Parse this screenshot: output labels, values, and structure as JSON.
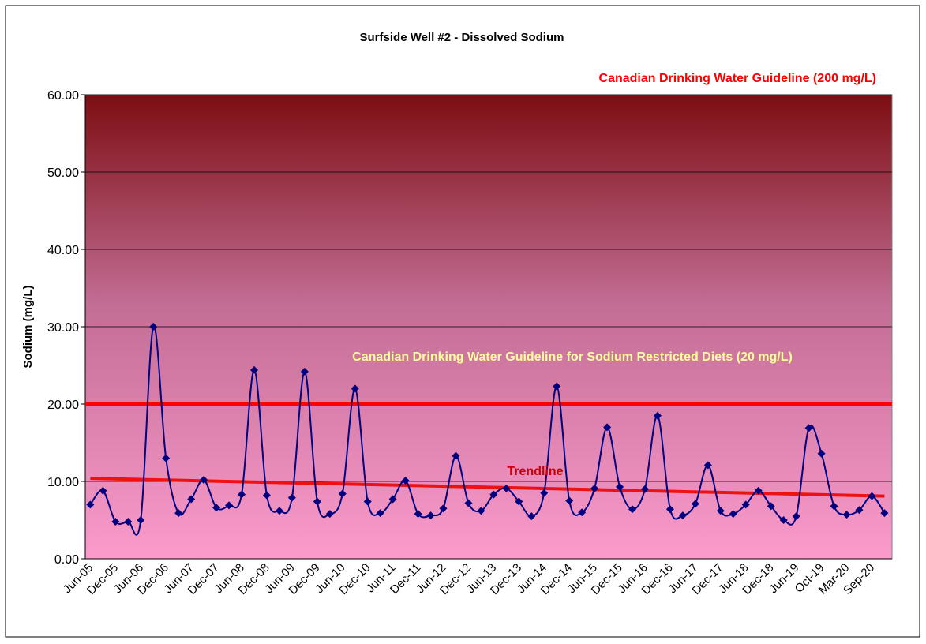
{
  "chart_data": {
    "type": "line",
    "title": "Surfside Well #2 - Dissolved Sodium",
    "y_label": "Sodium (mg/L)",
    "annotations": {
      "upper_guideline": "Canadian Drinking Water Guideline (200 mg/L)",
      "restricted_guideline": "Canadian Drinking Water Guideline for Sodium Restricted Diets (20 mg/L)",
      "trend": "Trendline"
    },
    "guideline": 20,
    "guideline_color": "#ff0000",
    "trendline": [
      10.4,
      8.1
    ],
    "trend_color": "#ee1111",
    "categories": [
      "Jun-05",
      null,
      "Dec-05",
      null,
      "Jun-06",
      null,
      "Dec-06",
      null,
      "Jun-07",
      null,
      "Dec-07",
      null,
      "Jun-08",
      null,
      "Dec-08",
      null,
      "Jun-09",
      null,
      "Dec-09",
      null,
      "Jun-10",
      null,
      "Dec-10",
      null,
      "Jun-11",
      null,
      "Dec-11",
      null,
      "Jun-12",
      null,
      "Dec-12",
      null,
      "Jun-13",
      null,
      "Dec-13",
      null,
      "Jun-14",
      null,
      "Dec-14",
      null,
      "Jun-15",
      null,
      "Dec-15",
      null,
      "Jun-16",
      null,
      "Dec-16",
      null,
      "Jun-17",
      null,
      "Dec-17",
      null,
      "Jun-18",
      null,
      "Dec-18",
      null,
      "Jun-19",
      null,
      "Oct-19",
      null,
      "Mar-20",
      null,
      "Sep-20",
      null
    ],
    "series": [
      {
        "name": "Sodium",
        "color": "#000080",
        "values": [
          7.0,
          8.8,
          4.8,
          4.8,
          5.0,
          30.0,
          13.0,
          5.9,
          7.7,
          10.2,
          6.6,
          6.9,
          8.3,
          24.4,
          8.2,
          6.2,
          7.9,
          24.2,
          7.4,
          5.8,
          8.4,
          22.0,
          7.4,
          5.9,
          7.7,
          10.1,
          5.8,
          5.6,
          6.5,
          13.3,
          7.2,
          6.2,
          8.3,
          9.1,
          7.4,
          5.5,
          8.5,
          22.3,
          7.5,
          6.0,
          9.1,
          17.0,
          9.3,
          6.4,
          9.0,
          18.5,
          6.4,
          5.6,
          7.1,
          12.1,
          6.2,
          5.8,
          7.0,
          8.8,
          6.8,
          5.0,
          5.5,
          16.9,
          13.6,
          6.8,
          5.7,
          6.3,
          8.1,
          5.9
        ]
      }
    ],
    "ylim": [
      0,
      60
    ],
    "yticks": [
      {
        "value": 0,
        "label": "0.00"
      },
      {
        "value": 10,
        "label": "10.00"
      },
      {
        "value": 20,
        "label": "20.00"
      },
      {
        "value": 30,
        "label": "30.00"
      },
      {
        "value": 40,
        "label": "40.00"
      },
      {
        "value": 50,
        "label": "50.00"
      },
      {
        "value": 60,
        "label": "60.00"
      }
    ],
    "grid": true
  }
}
